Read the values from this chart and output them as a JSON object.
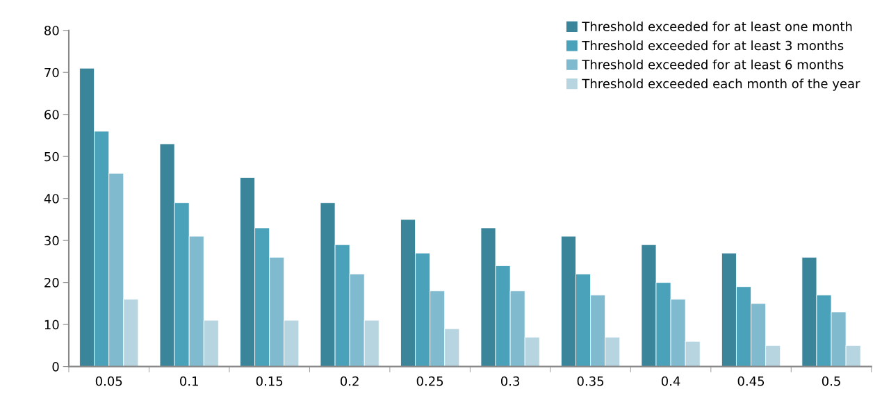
{
  "chart_data": {
    "type": "bar",
    "categories": [
      "0.05",
      "0.1",
      "0.15",
      "0.2",
      "0.25",
      "0.3",
      "0.35",
      "0.4",
      "0.45",
      "0.5"
    ],
    "series": [
      {
        "name": "Threshold exceeded for at least one month",
        "color": "#3a8599",
        "values": [
          71,
          53,
          45,
          39,
          35,
          33,
          31,
          29,
          27,
          26
        ]
      },
      {
        "name": "Threshold exceeded for at least 3 months",
        "color": "#49a2ba",
        "values": [
          56,
          39,
          33,
          29,
          27,
          24,
          22,
          20,
          19,
          17
        ]
      },
      {
        "name": "Threshold exceeded for at least 6 months",
        "color": "#7fbacf",
        "values": [
          46,
          31,
          26,
          22,
          18,
          18,
          17,
          16,
          15,
          13
        ]
      },
      {
        "name": "Threshold exceeded each month of the year",
        "color": "#b7d5e0",
        "values": [
          16,
          11,
          11,
          11,
          9,
          7,
          7,
          6,
          5,
          5
        ]
      }
    ],
    "ylim": [
      0,
      80
    ],
    "yticks": [
      0,
      10,
      20,
      30,
      40,
      50,
      60,
      70,
      80
    ],
    "grid": false,
    "legend": "top right"
  }
}
